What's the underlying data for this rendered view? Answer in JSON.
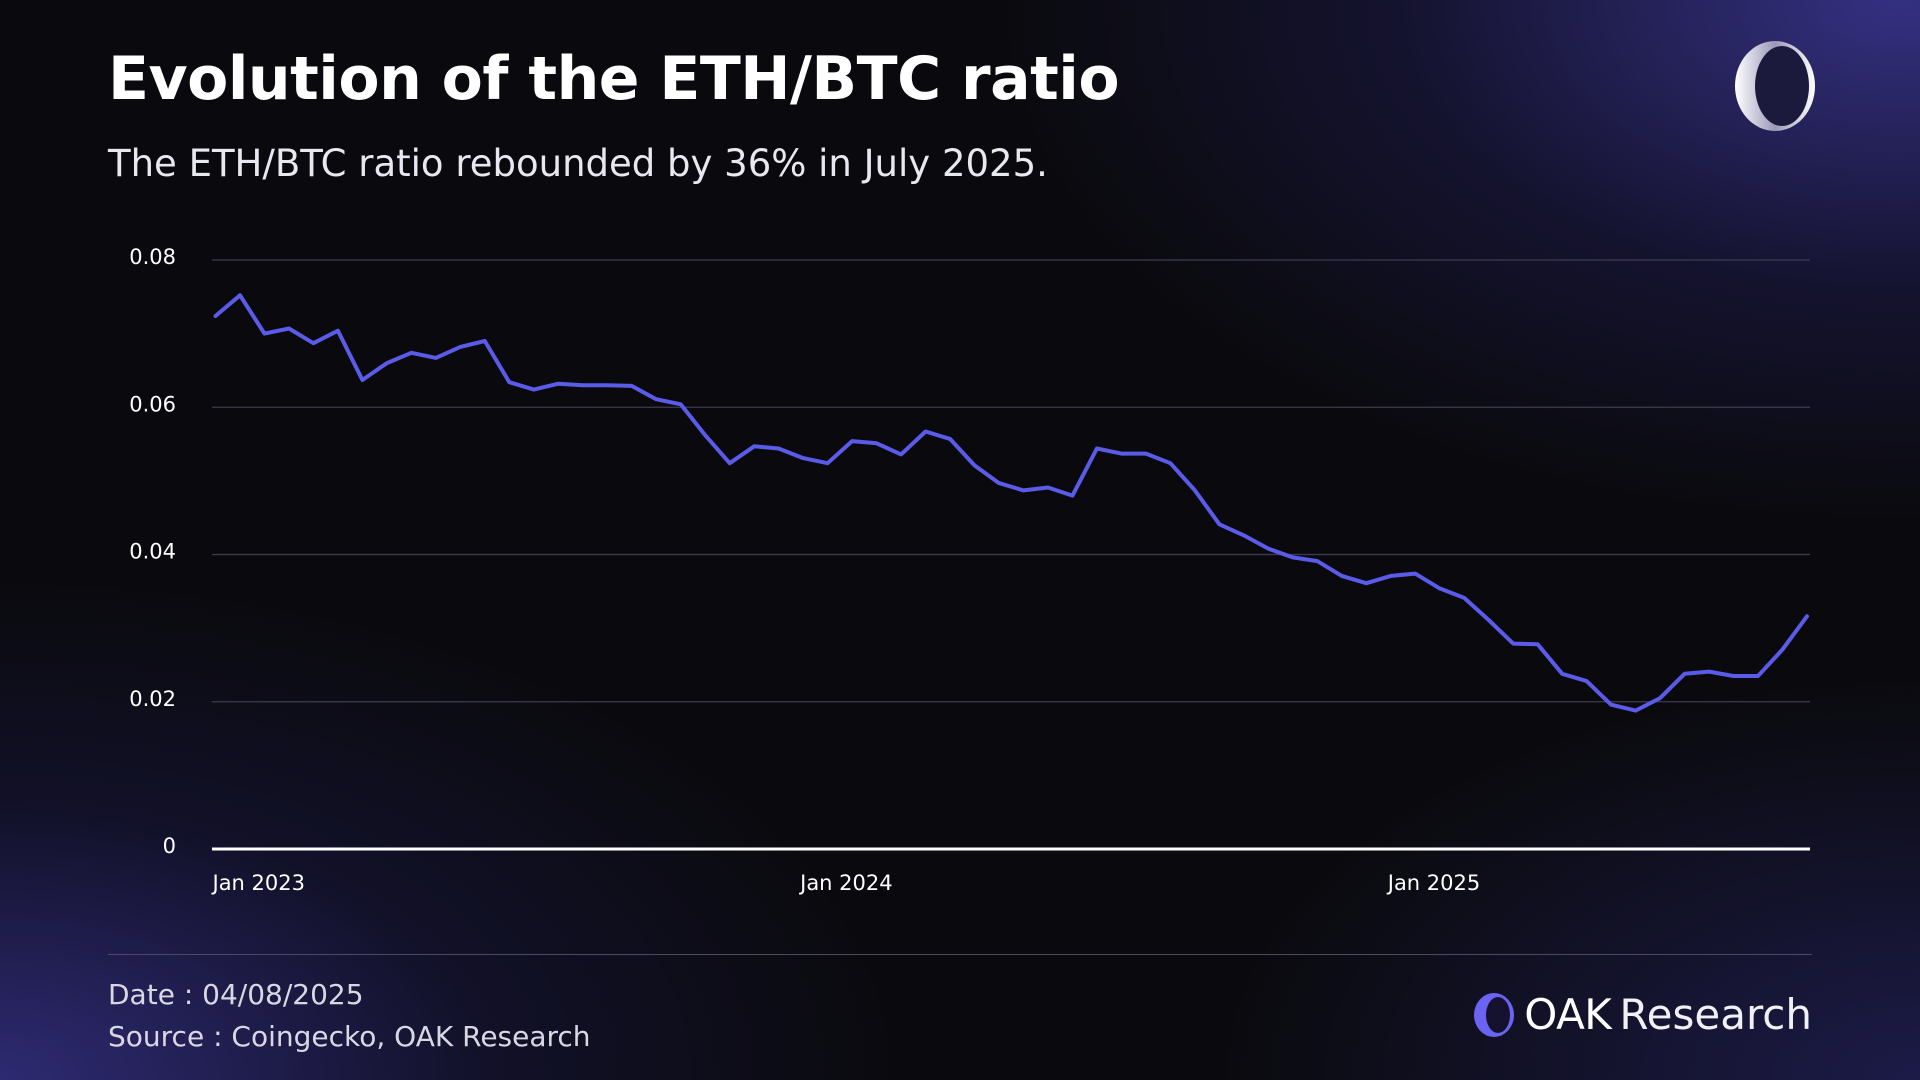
{
  "chart_data": {
    "type": "line",
    "title": "Evolution of the ETH/BTC ratio",
    "subtitle": "The ETH/BTC ratio rebounded by 36% in July 2025.",
    "categories": [
      "Jan 2023",
      null,
      null,
      null,
      null,
      null,
      null,
      null,
      null,
      null,
      null,
      null,
      null,
      null,
      null,
      null,
      null,
      null,
      null,
      null,
      null,
      null,
      null,
      null,
      "Jan 2024",
      null,
      null,
      null,
      null,
      null,
      null,
      null,
      null,
      null,
      null,
      null,
      null,
      null,
      null,
      null,
      null,
      null,
      null,
      null,
      null,
      null,
      null,
      null,
      "Jan 2025",
      null,
      null,
      null,
      null,
      null,
      null,
      null,
      null,
      null,
      null,
      null,
      null,
      null,
      null,
      null,
      null,
      null
    ],
    "values": [
      0.0724,
      0.0752,
      0.07,
      0.0707,
      0.0687,
      0.0704,
      0.0637,
      0.066,
      0.0674,
      0.0667,
      0.0682,
      0.069,
      0.0634,
      0.0624,
      0.0632,
      0.063,
      0.063,
      0.0629,
      0.0611,
      0.0604,
      0.0562,
      0.0524,
      0.0547,
      0.0544,
      0.0531,
      0.0524,
      0.0554,
      0.0551,
      0.0536,
      0.0567,
      0.0557,
      0.0521,
      0.0497,
      0.0487,
      0.0491,
      0.048,
      0.0544,
      0.0537,
      0.0537,
      0.0524,
      0.0487,
      0.0441,
      0.0426,
      0.0408,
      0.0396,
      0.0391,
      0.0371,
      0.0361,
      0.0371,
      0.0374,
      0.0354,
      0.0341,
      0.0311,
      0.0279,
      0.0278,
      0.0238,
      0.0228,
      0.0196,
      0.0188,
      0.0205,
      0.0238,
      0.0241,
      0.0235,
      0.0235,
      0.0271,
      0.0316
    ],
    "color": "#5b5bea",
    "ylim": [
      0,
      0.08
    ],
    "yticks": [
      0,
      0.02,
      0.04,
      0.06,
      0.08
    ],
    "grid": true
  },
  "footer": {
    "date": "Date : 04/08/2025",
    "source": "Source : Coingecko, OAK Research"
  },
  "brand": {
    "primary": "OAK",
    "secondary": "Research"
  }
}
